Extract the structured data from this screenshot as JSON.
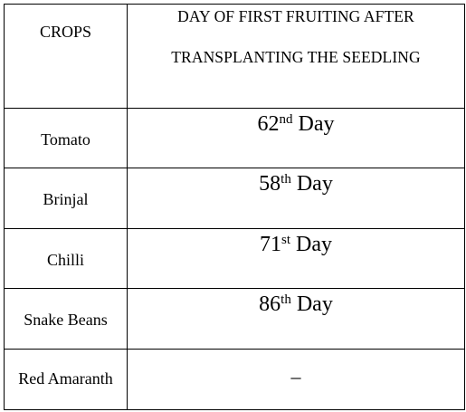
{
  "table": {
    "header": {
      "crops": "CROPS",
      "day_line1": "DAY OF FIRST FRUITING AFTER",
      "day_line2": "TRANSPLANTING THE SEEDLING"
    },
    "rows": [
      {
        "crop": "Tomato",
        "day_num": "62",
        "day_suffix": "nd",
        "day_word": "Day"
      },
      {
        "crop": "Brinjal",
        "day_num": "58",
        "day_suffix": "th",
        "day_word": "Day"
      },
      {
        "crop": "Chilli",
        "day_num": "71",
        "day_suffix": "st",
        "day_word": "Day"
      },
      {
        "crop": "Snake Beans",
        "day_num": "86",
        "day_suffix": "th",
        "day_word": "Day"
      },
      {
        "crop": "Red Amaranth",
        "day_value": "–"
      }
    ]
  }
}
